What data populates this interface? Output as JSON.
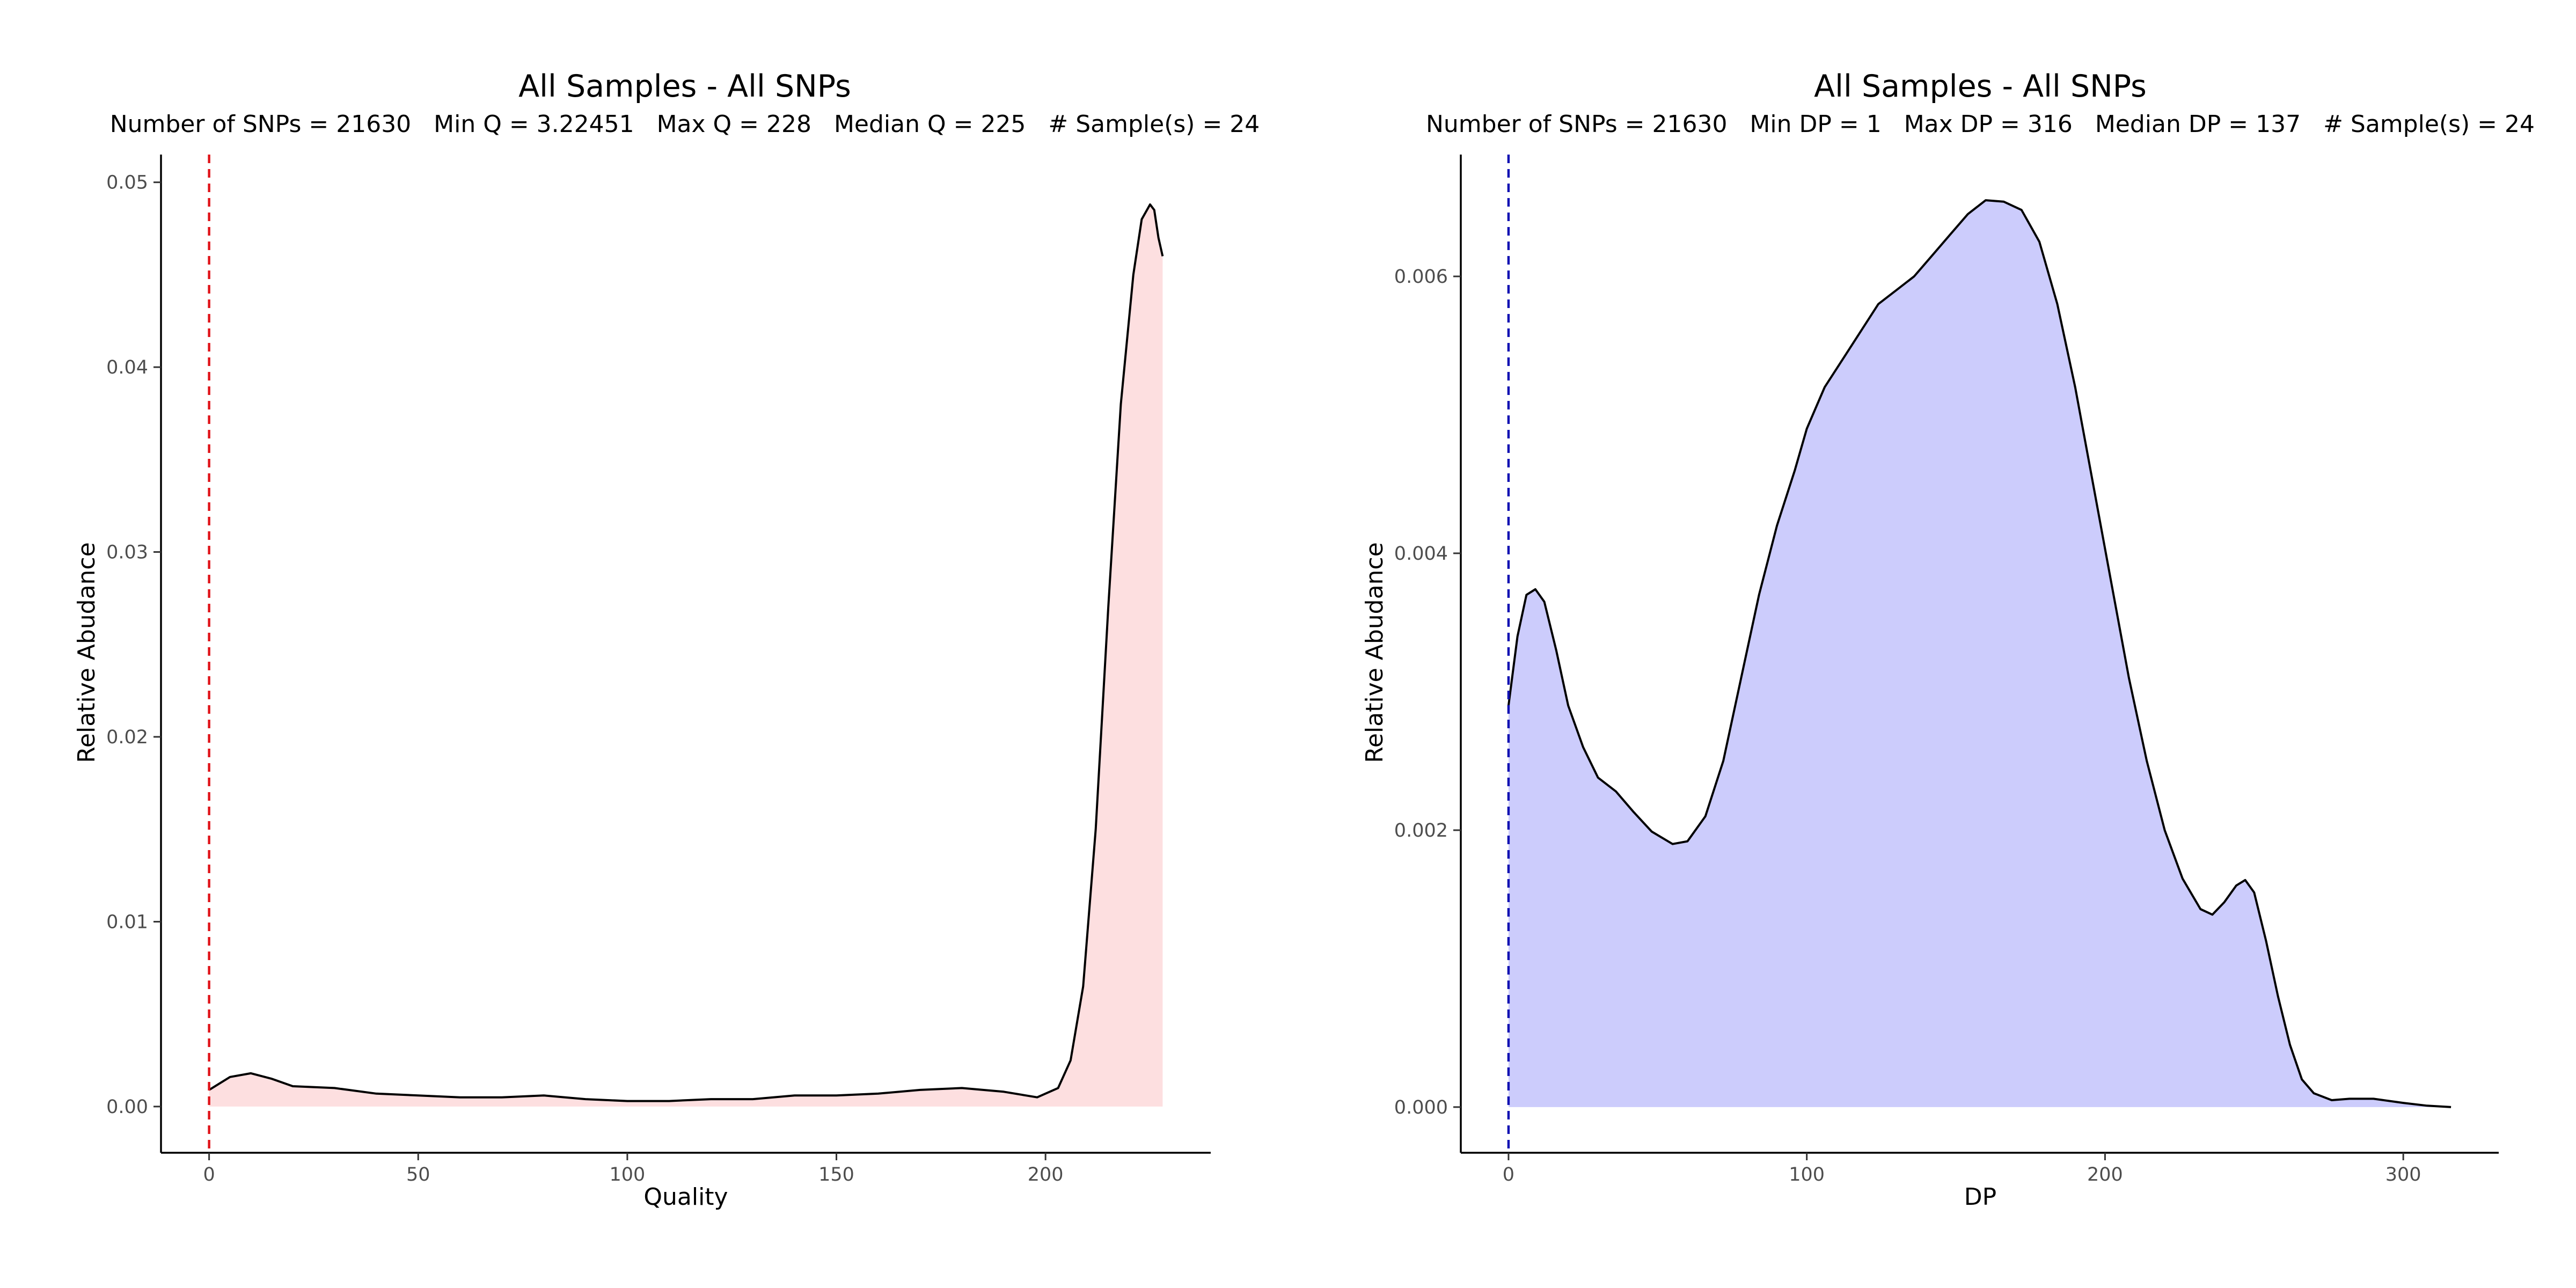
{
  "chart_data": [
    {
      "type": "area",
      "title": "All Samples - All SNPs",
      "subtitle": "Number of SNPs = 21630   Min Q = 3.22451   Max Q = 228   Median Q = 225   # Sample(s) = 24",
      "xlabel": "Quality",
      "ylabel": "Relative Abudance",
      "xlim": [
        -11.5,
        239.5
      ],
      "ylim": [
        -0.0025,
        0.0515
      ],
      "x_ticks": [
        0,
        50,
        100,
        150,
        200
      ],
      "y_ticks": [
        0.0,
        0.01,
        0.02,
        0.03,
        0.04,
        0.05
      ],
      "y_tick_labels": [
        "0.00",
        "0.01",
        "0.02",
        "0.03",
        "0.04",
        "0.05"
      ],
      "fill_color": "#fddfe0",
      "line_color": "#000000",
      "reference_line": {
        "x": 0,
        "color": "#e0151b",
        "style": "dashed"
      },
      "series": [
        {
          "x": [
            0,
            5,
            10,
            15,
            20,
            30,
            40,
            50,
            60,
            70,
            80,
            90,
            100,
            110,
            120,
            130,
            140,
            150,
            160,
            170,
            180,
            190,
            198,
            203,
            206,
            209,
            212,
            215,
            218,
            221,
            223,
            225,
            226,
            227,
            228
          ],
          "values": [
            0.0009,
            0.0016,
            0.0018,
            0.0015,
            0.0011,
            0.001,
            0.0007,
            0.0006,
            0.0005,
            0.0005,
            0.0006,
            0.0004,
            0.0003,
            0.0003,
            0.0004,
            0.0004,
            0.0006,
            0.0006,
            0.0007,
            0.0009,
            0.001,
            0.0008,
            0.0005,
            0.001,
            0.0025,
            0.0065,
            0.015,
            0.027,
            0.038,
            0.045,
            0.048,
            0.0488,
            0.0485,
            0.047,
            0.046
          ]
        }
      ]
    },
    {
      "type": "area",
      "title": "All Samples - All SNPs",
      "subtitle": "Number of SNPs = 21630   Min DP = 1   Max DP = 316   Median DP = 137   # Sample(s) = 24",
      "xlabel": "DP",
      "ylabel": "Relative Abudance",
      "xlim": [
        -16,
        332
      ],
      "ylim": [
        -0.00033,
        0.00688
      ],
      "x_ticks": [
        0,
        100,
        200,
        300
      ],
      "y_ticks": [
        0.0,
        0.002,
        0.004,
        0.006
      ],
      "y_tick_labels": [
        "0.000",
        "0.002",
        "0.004",
        "0.006"
      ],
      "fill_color": "#ccccfc",
      "line_color": "#000000",
      "reference_line": {
        "x": 0,
        "color": "#1212b3",
        "style": "dashed"
      },
      "series": [
        {
          "x": [
            0,
            3,
            6,
            9,
            12,
            16,
            20,
            25,
            30,
            36,
            42,
            48,
            55,
            60,
            66,
            72,
            78,
            84,
            90,
            96,
            100,
            106,
            112,
            118,
            124,
            130,
            136,
            142,
            148,
            154,
            160,
            166,
            172,
            178,
            184,
            190,
            196,
            202,
            208,
            214,
            220,
            226,
            232,
            236,
            240,
            244,
            247,
            250,
            254,
            258,
            262,
            266,
            270,
            276,
            282,
            290,
            300,
            308,
            316
          ],
          "values": [
            0.0029,
            0.0034,
            0.0037,
            0.00374,
            0.00365,
            0.0033,
            0.0029,
            0.0026,
            0.00238,
            0.00228,
            0.00213,
            0.00199,
            0.0019,
            0.00192,
            0.0021,
            0.0025,
            0.0031,
            0.0037,
            0.0042,
            0.0046,
            0.0049,
            0.0052,
            0.0054,
            0.0056,
            0.0058,
            0.0059,
            0.006,
            0.00615,
            0.0063,
            0.00645,
            0.00655,
            0.00654,
            0.00648,
            0.00625,
            0.0058,
            0.0052,
            0.0045,
            0.0038,
            0.0031,
            0.0025,
            0.002,
            0.00165,
            0.00143,
            0.00139,
            0.00148,
            0.0016,
            0.00164,
            0.00155,
            0.0012,
            0.0008,
            0.00045,
            0.0002,
            0.0001,
            5e-05,
            6e-05,
            6e-05,
            3e-05,
            1e-05,
            0.0
          ]
        }
      ]
    }
  ]
}
